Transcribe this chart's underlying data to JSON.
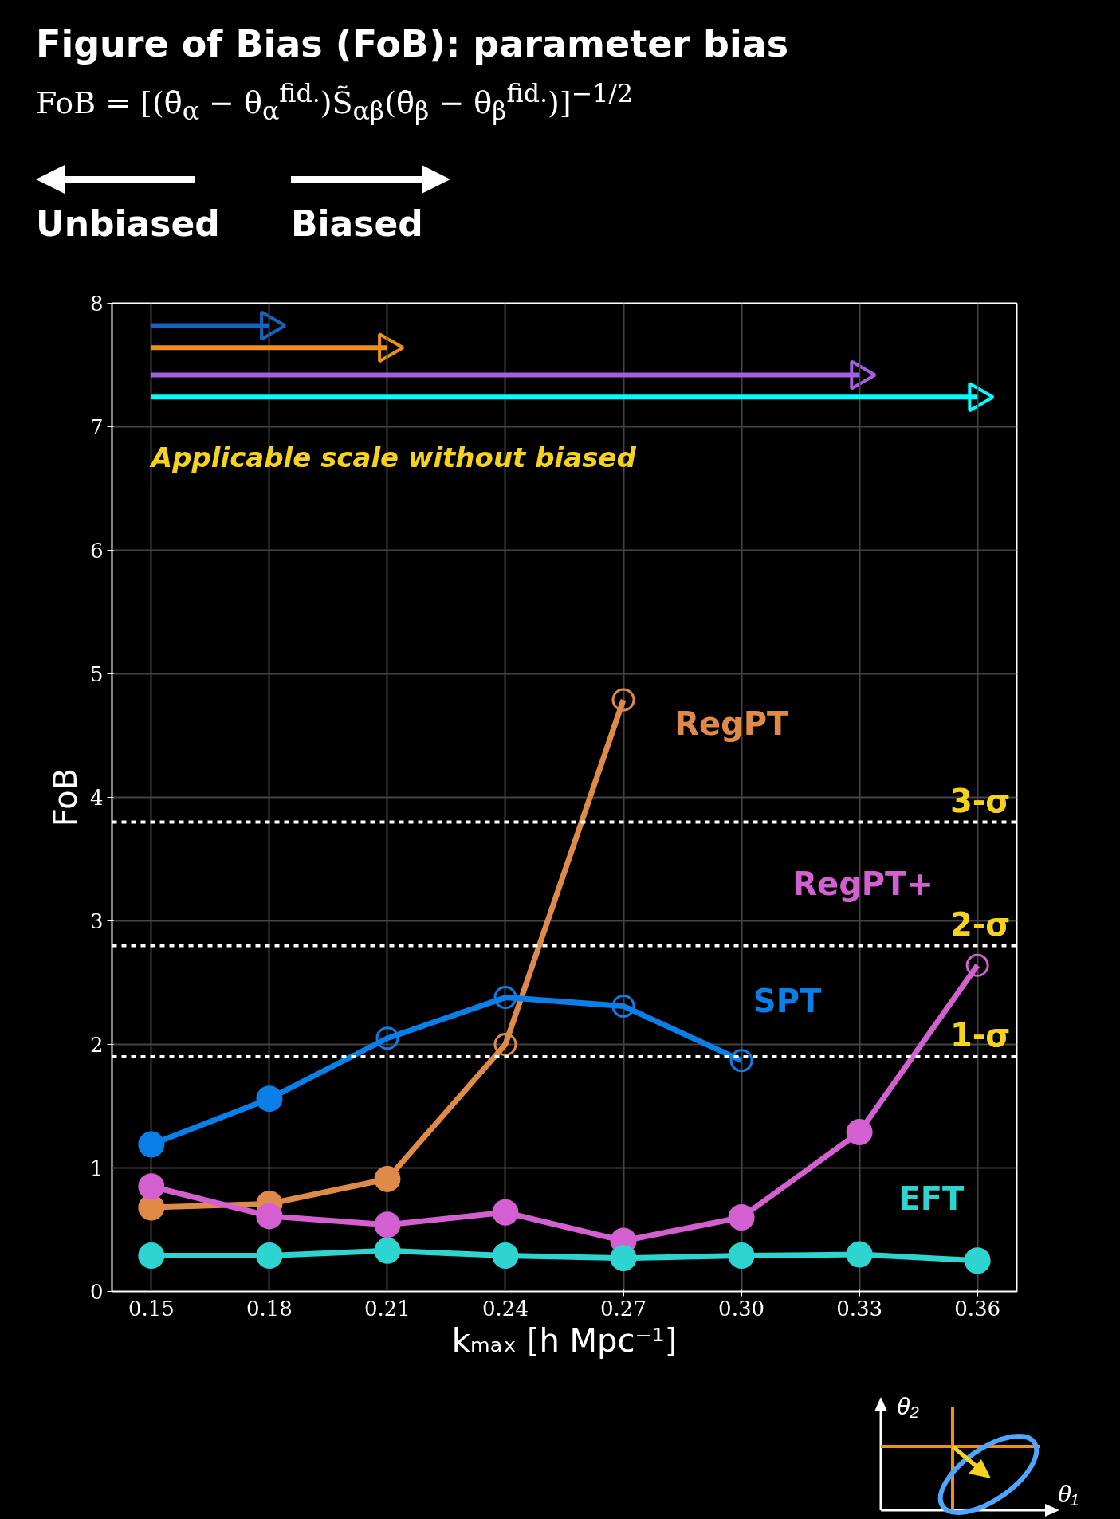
{
  "chart_data": {
    "type": "line",
    "title": "Figure of Bias (FoB): parameter bias",
    "subtitle": "FoB = [(θ̄$_{α}$ − θ$_{α}$$^{fid.}$)S̃$_{αβ}$(θ̄$_{β}$ − θ$_{β}$$^{fid.}$)]$^{−1/2}$",
    "xlabel": "kₘₐₓ [h Mpc⁻¹]",
    "ylabel": "FoB",
    "x": [
      0.15,
      0.18,
      0.21,
      0.24,
      0.27,
      0.3,
      0.33,
      0.36
    ],
    "xlim": [
      0.14,
      0.37
    ],
    "xticks": [
      0.15,
      0.18,
      0.21,
      0.24,
      0.27,
      {
        "value": 0.3,
        "label": "0.30"
      },
      0.33,
      0.36
    ],
    "ylim": [
      0,
      8
    ],
    "yticks": [
      0,
      1,
      2,
      3,
      4,
      5,
      6,
      7,
      8
    ],
    "grid": true,
    "marker": "circle",
    "line_style": "solid",
    "series": [
      {
        "name": "RegPT",
        "color": "#e08a4a",
        "values": [
          0.68,
          0.71,
          0.91,
          2.0,
          4.79,
          null,
          null,
          null
        ]
      },
      {
        "name": "SPT",
        "color": "#0a7fe8",
        "values": [
          1.19,
          1.56,
          2.05,
          2.38,
          2.31,
          1.87,
          null,
          null
        ]
      },
      {
        "name": "RegPT+",
        "color": "#d35fd0",
        "values": [
          0.85,
          0.61,
          0.54,
          0.64,
          0.41,
          0.6,
          1.29,
          2.64
        ]
      },
      {
        "name": "EFT",
        "color": "#2dd4d0",
        "values": [
          0.29,
          0.29,
          0.33,
          0.29,
          0.27,
          0.29,
          0.3,
          0.25
        ]
      },
      {
        "color": "#1565c0",
        "x": [
          0.15,
          0.18
        ],
        "values": [
          7.82,
          7.82
        ],
        "marker": "triangle"
      },
      {
        "color": "#f0901a",
        "x": [
          0.15,
          0.21
        ],
        "values": [
          7.64,
          7.64
        ],
        "marker": "triangle"
      },
      {
        "color": "#a060e0",
        "x": [
          0.15,
          0.33
        ],
        "values": [
          7.42,
          7.42
        ],
        "marker": "triangle"
      },
      {
        "color": "#00ffff",
        "x": [
          0.15,
          0.36
        ],
        "values": [
          7.24,
          7.24
        ],
        "marker": "triangle"
      }
    ],
    "ref_lines": [
      {
        "axis": "y",
        "value": 1.9,
        "label": "1-σ",
        "color": "#ffffff",
        "line_style": "dashed"
      },
      {
        "axis": "y",
        "value": 2.8,
        "label": "2-σ",
        "color": "#ffffff",
        "line_style": "dashed"
      },
      {
        "axis": "y",
        "value": 3.8,
        "label": "3-σ",
        "color": "#ffffff",
        "line_style": "dashed"
      }
    ],
    "annotations": [
      "Biased",
      "Unbiased",
      "Applicable scale without biased",
      "θ₁",
      "θ₂"
    ]
  }
}
